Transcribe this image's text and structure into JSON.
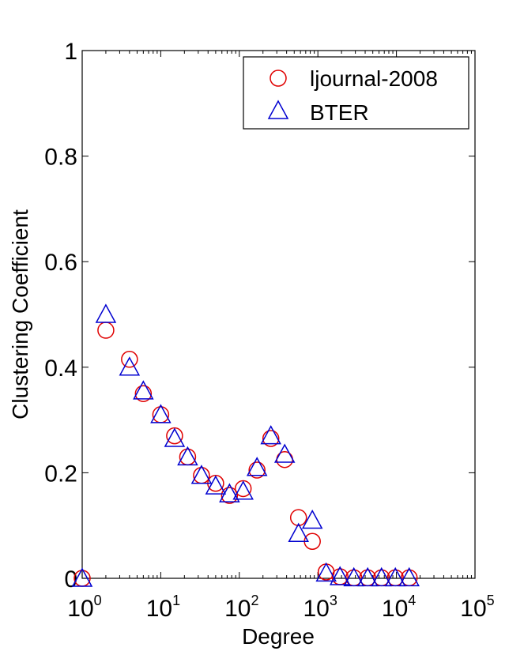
{
  "chart_data": {
    "type": "scatter",
    "xscale": "log",
    "xlim": [
      1,
      100000
    ],
    "ylim": [
      0,
      1
    ],
    "xlabel": "Degree",
    "ylabel": "Clustering Coefficient",
    "x_ticks": [
      {
        "base": "10",
        "exp": "0",
        "value": 1
      },
      {
        "base": "10",
        "exp": "1",
        "value": 10
      },
      {
        "base": "10",
        "exp": "2",
        "value": 100
      },
      {
        "base": "10",
        "exp": "3",
        "value": 1000
      },
      {
        "base": "10",
        "exp": "4",
        "value": 10000
      },
      {
        "base": "10",
        "exp": "5",
        "value": 100000
      }
    ],
    "y_ticks": [
      {
        "label": "0",
        "value": 0
      },
      {
        "label": "0.2",
        "value": 0.2
      },
      {
        "label": "0.4",
        "value": 0.4
      },
      {
        "label": "0.6",
        "value": 0.6
      },
      {
        "label": "0.8",
        "value": 0.8
      },
      {
        "label": "1",
        "value": 1
      }
    ],
    "grid": false,
    "legend_position": "top-right",
    "series": [
      {
        "name": "ljournal-2008",
        "marker": "circle",
        "color": "#e00000",
        "x": [
          1,
          2,
          4,
          6,
          10,
          15,
          22,
          33,
          50,
          75,
          112,
          168,
          252,
          378,
          567,
          850,
          1275,
          1913,
          2870,
          4305,
          6457,
          9686,
          14529
        ],
        "y": [
          0.0,
          0.47,
          0.415,
          0.35,
          0.31,
          0.27,
          0.23,
          0.195,
          0.18,
          0.157,
          0.17,
          0.205,
          0.265,
          0.225,
          0.115,
          0.07,
          0.012,
          0.003,
          0.001,
          0.001,
          0.001,
          0.001,
          0.001
        ]
      },
      {
        "name": "BTER",
        "marker": "triangle",
        "color": "#0000d0",
        "x": [
          1,
          2,
          4,
          6,
          10,
          15,
          22,
          33,
          50,
          75,
          112,
          168,
          252,
          378,
          567,
          850,
          1275,
          1913,
          2870,
          4305,
          6457,
          9686,
          14529
        ],
        "y": [
          0.0,
          0.5,
          0.4,
          0.355,
          0.31,
          0.265,
          0.23,
          0.195,
          0.175,
          0.16,
          0.165,
          0.21,
          0.27,
          0.235,
          0.085,
          0.11,
          0.01,
          0.003,
          0.001,
          0.001,
          0.001,
          0.001,
          0.001
        ]
      }
    ]
  }
}
